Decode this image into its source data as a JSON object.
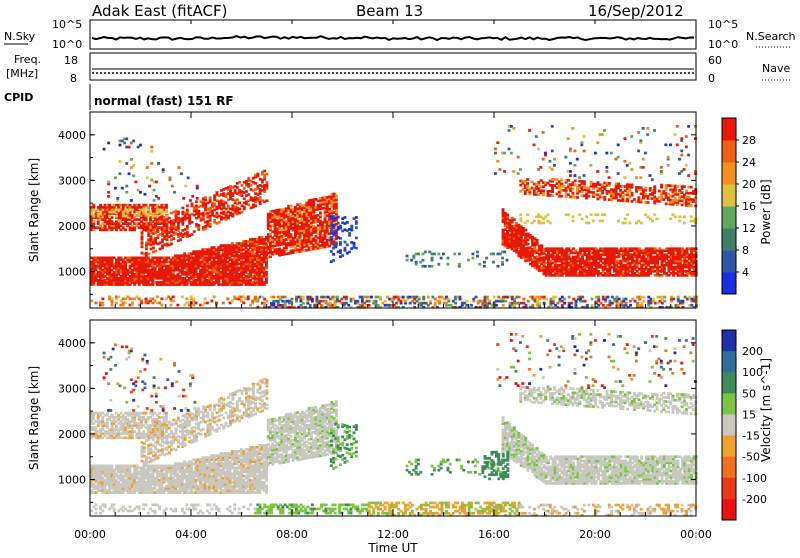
{
  "header": {
    "radar": "Adak East (fitACF)",
    "beam": "Beam 13",
    "date": "16/Sep/2012"
  },
  "strips": {
    "nsky": {
      "label": "N.Sky",
      "tick_hi": "10^5",
      "tick_lo": "10^0",
      "right_label": "N.Search",
      "right_hi": "10^5",
      "right_lo": "10^0"
    },
    "freq": {
      "label_line1": "Freq.",
      "label_line2": "[MHz]",
      "tick_hi": "18",
      "tick_lo": "8",
      "right_label": "Nave",
      "right_hi": "60",
      "right_lo": "0"
    },
    "cpid": {
      "label": "CPID",
      "mode": "normal (fast) 151 RF"
    }
  },
  "chart_data": [
    {
      "type": "heatmap",
      "name": "Power",
      "ylabel": "Slant Range [km]",
      "yticks": [
        "1000",
        "2000",
        "3000",
        "4000"
      ],
      "ylim": [
        200,
        4500
      ],
      "xlim": [
        0,
        24
      ],
      "colorbar": {
        "label": "Power [dB]",
        "ticks": [
          "4",
          "8",
          "12",
          "16",
          "20",
          "24",
          "28"
        ],
        "range": [
          0,
          32
        ],
        "colors": [
          "#1a2ee0",
          "#2f54a8",
          "#3f7f6a",
          "#5fa85f",
          "#e0c040",
          "#f59020",
          "#f06010",
          "#e81808"
        ]
      }
    },
    {
      "type": "heatmap",
      "name": "Velocity",
      "ylabel": "Slant Range [km]",
      "yticks": [
        "1000",
        "2000",
        "3000",
        "4000"
      ],
      "ylim": [
        200,
        4500
      ],
      "xlim": [
        0,
        24
      ],
      "colorbar": {
        "label": "Velocity [m s^-1]",
        "ticks": [
          "200",
          "100",
          "50",
          "15",
          "-15",
          "-50",
          "-100",
          "-200"
        ],
        "colors": [
          "#1e2fa8",
          "#2e6ea0",
          "#3d8a5a",
          "#7cc443",
          "#c8c8c0",
          "#f0a030",
          "#f07020",
          "#e83a18",
          "#e81010"
        ]
      }
    }
  ],
  "time_axis": {
    "ticks": [
      "00:00",
      "04:00",
      "08:00",
      "12:00",
      "16:00",
      "20:00",
      "00:00"
    ],
    "label": "Time UT"
  }
}
